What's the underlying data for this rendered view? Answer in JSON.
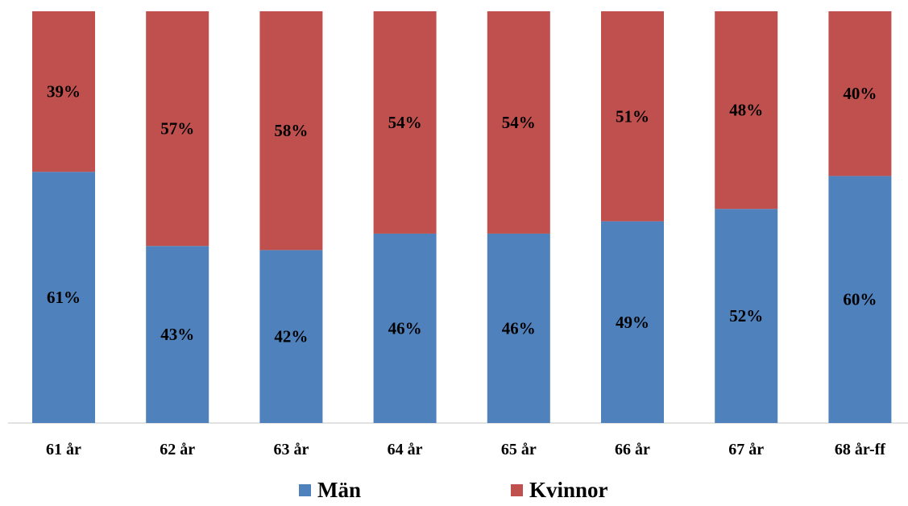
{
  "chart_data": {
    "type": "bar",
    "stacked": true,
    "normalized_percent": true,
    "categories": [
      "61 år",
      "62 år",
      "63 år",
      "64 år",
      "65 år",
      "66 år",
      "67 år",
      "68 år-ff"
    ],
    "series": [
      {
        "name": "Män",
        "color": "#4F81BD",
        "values": [
          61,
          43,
          42,
          46,
          46,
          49,
          52,
          60
        ],
        "labels": [
          "61%",
          "43%",
          "42%",
          "46%",
          "46%",
          "49%",
          "52%",
          "60%"
        ]
      },
      {
        "name": "Kvinnor",
        "color": "#C0504D",
        "values": [
          39,
          57,
          58,
          54,
          54,
          51,
          48,
          40
        ],
        "labels": [
          "39%",
          "57%",
          "58%",
          "54%",
          "54%",
          "51%",
          "48%",
          "40%"
        ]
      }
    ],
    "ylim": [
      0,
      100
    ],
    "grid": false,
    "legend_position": "bottom"
  }
}
